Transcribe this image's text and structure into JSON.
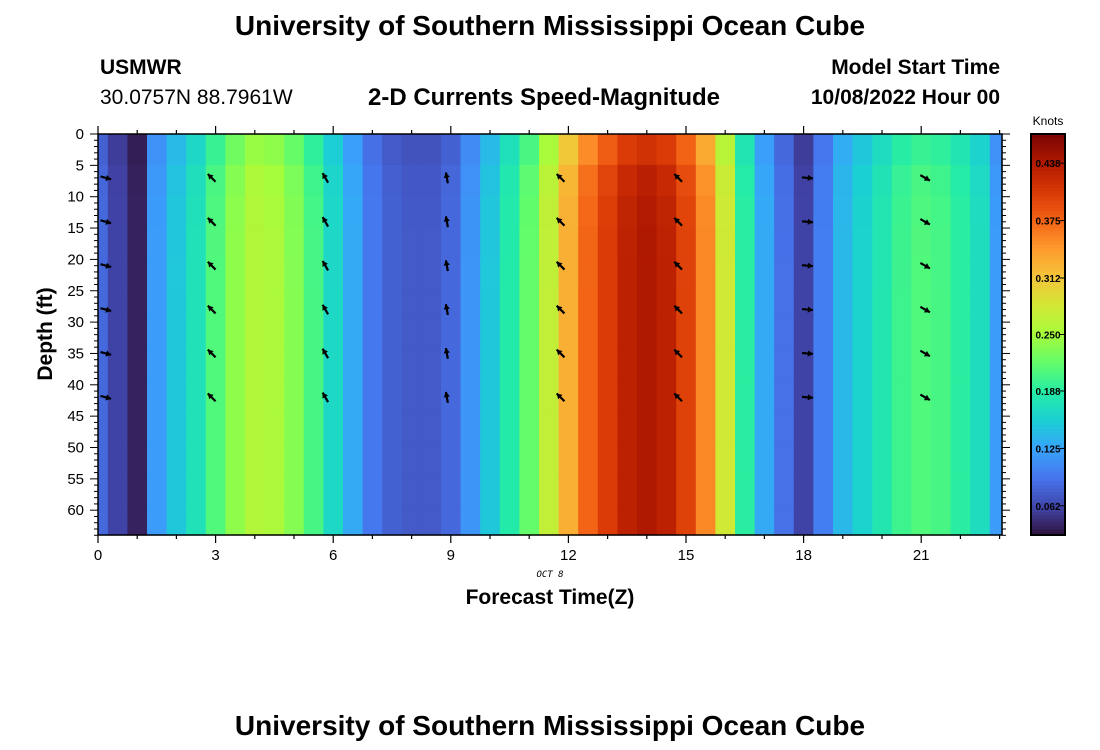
{
  "header": {
    "title": "University of Southern Mississippi Ocean Cube",
    "station_name": "USMWR",
    "coordinates": "30.0757N  88.7961W",
    "subtitle": "2-D Currents Speed-Magnitude",
    "model_start_label": "Model Start Time",
    "model_start_value": "10/08/2022 Hour 00"
  },
  "footer": {
    "title": "University of Southern Mississippi Ocean Cube"
  },
  "chart_data": {
    "type": "heatmap",
    "xlabel": "Forecast Time(Z)",
    "ylabel": "Depth (ft)",
    "date_label": "OCT 8",
    "colorbar_unit": "Knots",
    "x_range": [
      0,
      23
    ],
    "y_range": [
      0,
      64
    ],
    "y_inverted": true,
    "x_ticks": [
      0,
      3,
      6,
      9,
      12,
      15,
      18,
      21
    ],
    "y_ticks": [
      0,
      5,
      10,
      15,
      20,
      25,
      30,
      35,
      40,
      45,
      50,
      55,
      60
    ],
    "colorbar_ticks": [
      "0.062",
      "0.125",
      "0.188",
      "0.250",
      "0.312",
      "0.375",
      "0.438"
    ],
    "colorbar_tick_values": [
      0.062,
      0.125,
      0.188,
      0.25,
      0.312,
      0.375,
      0.438
    ],
    "colorbar_range": [
      0.03,
      0.47
    ],
    "colormap": [
      "#30123b",
      "#4145ab",
      "#4675ed",
      "#39a2fc",
      "#1bcfd4",
      "#24eca6",
      "#61fc6c",
      "#a4fc3b",
      "#d1e834",
      "#f3c63a",
      "#fe9b2d",
      "#f36315",
      "#d93806",
      "#b11901",
      "#7a0403"
    ],
    "hours": [
      0,
      0.5,
      1,
      1.5,
      2,
      2.5,
      3,
      3.5,
      4,
      4.5,
      5,
      5.5,
      6,
      6.5,
      7,
      7.5,
      8,
      8.5,
      9,
      9.5,
      10,
      10.5,
      11,
      11.5,
      12,
      12.5,
      13,
      13.5,
      14,
      14.5,
      15,
      15.5,
      16,
      16.5,
      17,
      17.5,
      18,
      18.5,
      19,
      19.5,
      20,
      20.5,
      21,
      21.5,
      22,
      22.5,
      23
    ],
    "speed_knots": [
      0.085,
      0.06,
      0.04,
      0.12,
      0.15,
      0.175,
      0.21,
      0.24,
      0.26,
      0.255,
      0.235,
      0.205,
      0.165,
      0.13,
      0.095,
      0.08,
      0.075,
      0.075,
      0.085,
      0.115,
      0.15,
      0.185,
      0.22,
      0.27,
      0.33,
      0.375,
      0.405,
      0.43,
      0.44,
      0.43,
      0.4,
      0.355,
      0.28,
      0.19,
      0.13,
      0.09,
      0.06,
      0.1,
      0.14,
      0.16,
      0.18,
      0.2,
      0.21,
      0.205,
      0.19,
      0.17,
      0.12
    ],
    "depth_profile_note": "",
    "vector_hours": [
      0.2,
      2.9,
      5.8,
      8.9,
      11.8,
      14.8,
      18.1,
      21.1
    ],
    "vector_depths": [
      7,
      14,
      21,
      28,
      35,
      42
    ],
    "vector_directions_deg": [
      105,
      315,
      330,
      350,
      315,
      315,
      95,
      120
    ]
  }
}
